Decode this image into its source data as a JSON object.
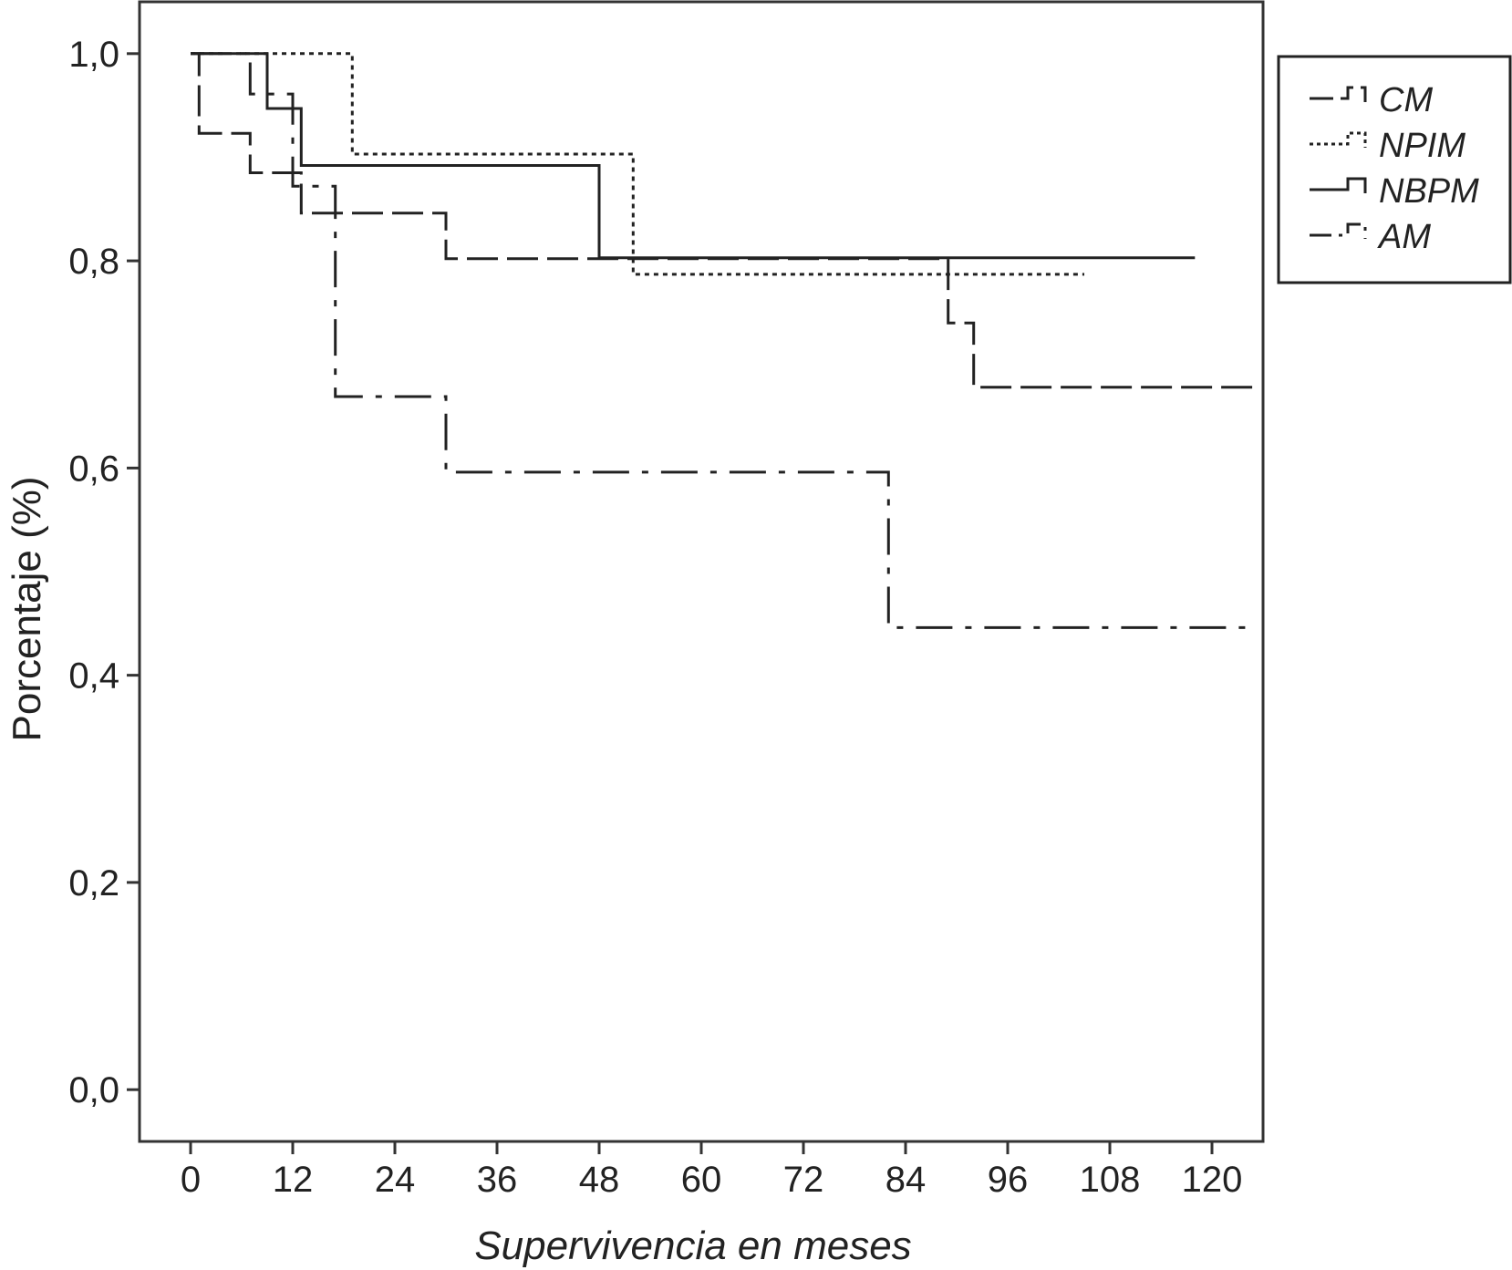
{
  "chart_data": {
    "type": "line",
    "subtype": "kaplan-meier step",
    "title": "",
    "xlabel": "Supervivencia en meses",
    "ylabel": "Porcentaje (%)",
    "xlim": [
      -6,
      126
    ],
    "ylim": [
      -0.05,
      1.05
    ],
    "x_ticks": [
      0,
      12,
      24,
      36,
      48,
      60,
      72,
      84,
      96,
      108,
      120
    ],
    "x_tick_labels": [
      "0",
      "12",
      "24",
      "36",
      "48",
      "60",
      "72",
      "84",
      "96",
      "108",
      "120"
    ],
    "y_ticks": [
      0.0,
      0.2,
      0.4,
      0.6,
      0.8,
      1.0
    ],
    "y_tick_labels": [
      "0,0",
      "0,2",
      "0,4",
      "0,6",
      "0,8",
      "1,0"
    ],
    "grid": false,
    "legend_position": "right, outside plot (top)",
    "series": [
      {
        "name": "CM",
        "dash": "long-dash",
        "points": [
          [
            0,
            1.0
          ],
          [
            1,
            1.0
          ],
          [
            1,
            0.923
          ],
          [
            7,
            0.923
          ],
          [
            7,
            0.885
          ],
          [
            13,
            0.885
          ],
          [
            13,
            0.846
          ],
          [
            30,
            0.846
          ],
          [
            30,
            0.802
          ],
          [
            89,
            0.802
          ],
          [
            89,
            0.74
          ],
          [
            92,
            0.74
          ],
          [
            92,
            0.678
          ],
          [
            125,
            0.678
          ]
        ]
      },
      {
        "name": "NPIM",
        "dash": "dotted",
        "points": [
          [
            0,
            1.0
          ],
          [
            19,
            1.0
          ],
          [
            19,
            0.903
          ],
          [
            52,
            0.903
          ],
          [
            52,
            0.787
          ],
          [
            105,
            0.787
          ]
        ]
      },
      {
        "name": "NBPM",
        "dash": "solid",
        "points": [
          [
            0,
            1.0
          ],
          [
            9,
            1.0
          ],
          [
            9,
            0.947
          ],
          [
            13,
            0.947
          ],
          [
            13,
            0.892
          ],
          [
            48,
            0.892
          ],
          [
            48,
            0.803
          ],
          [
            118,
            0.803
          ]
        ]
      },
      {
        "name": "AM",
        "dash": "dash-dot",
        "points": [
          [
            0,
            1.0
          ],
          [
            7,
            1.0
          ],
          [
            7,
            0.961
          ],
          [
            12,
            0.961
          ],
          [
            12,
            0.872
          ],
          [
            17,
            0.872
          ],
          [
            17,
            0.669
          ],
          [
            30,
            0.669
          ],
          [
            30,
            0.596
          ],
          [
            82,
            0.596
          ],
          [
            82,
            0.446
          ],
          [
            124,
            0.446
          ]
        ]
      }
    ]
  },
  "style": {
    "line_color": "#222222",
    "frame_color": "#333333",
    "background": "#ffffff"
  }
}
